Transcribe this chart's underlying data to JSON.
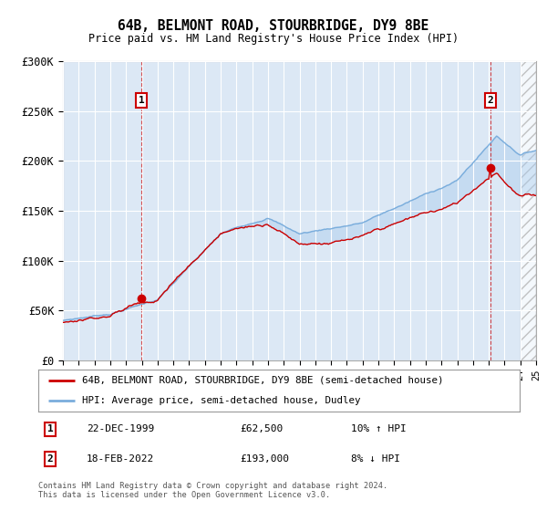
{
  "title": "64B, BELMONT ROAD, STOURBRIDGE, DY9 8BE",
  "subtitle": "Price paid vs. HM Land Registry's House Price Index (HPI)",
  "legend_line1": "64B, BELMONT ROAD, STOURBRIDGE, DY9 8BE (semi-detached house)",
  "legend_line2": "HPI: Average price, semi-detached house, Dudley",
  "annotation1_date": "22-DEC-1999",
  "annotation1_price": "£62,500",
  "annotation1_hpi": "10% ↑ HPI",
  "annotation2_date": "18-FEB-2022",
  "annotation2_price": "£193,000",
  "annotation2_hpi": "8% ↓ HPI",
  "footnote": "Contains HM Land Registry data © Crown copyright and database right 2024.\nThis data is licensed under the Open Government Licence v3.0.",
  "ylim": [
    0,
    300000
  ],
  "yticks": [
    0,
    50000,
    100000,
    150000,
    200000,
    250000,
    300000
  ],
  "bg_color": "#dce8f5",
  "grid_color": "#ffffff",
  "red_line_color": "#cc0000",
  "blue_line_color": "#7aaddc",
  "purchase1_year": 1999.97,
  "purchase1_value": 62500,
  "purchase2_year": 2022.12,
  "purchase2_value": 193000,
  "xmin": 1995,
  "xmax": 2025,
  "hatch_start": 2024
}
